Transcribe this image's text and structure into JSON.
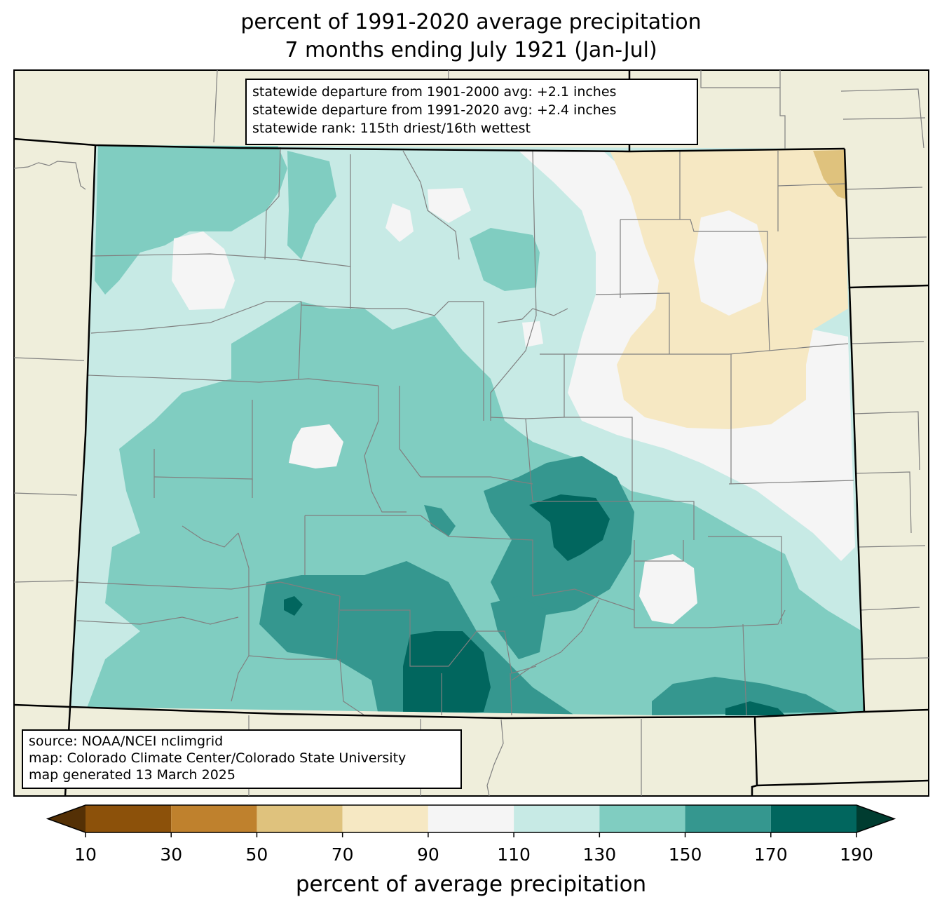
{
  "title": {
    "line1": "percent of 1991-2020 average precipitation",
    "line2": "7 months ending July 1921 (Jan-Jul)"
  },
  "stats": {
    "line1": "statewide departure from 1901-2000 avg: +2.1 inches",
    "line2": "statewide departure from 1991-2020 avg: +2.4 inches",
    "line3": "statewide rank: 115th driest/16th wettest"
  },
  "source": {
    "line1": "source: NOAA/NCEI nclimgrid",
    "line2": "map: Colorado Climate Center/Colorado State University",
    "line3": "map generated 13 March 2025"
  },
  "colorbar": {
    "label": "percent of average precipitation",
    "ticks": [
      "10",
      "30",
      "50",
      "70",
      "90",
      "110",
      "130",
      "150",
      "170",
      "190"
    ],
    "under_color": "#543005",
    "over_color": "#003c30",
    "bins": [
      {
        "range": "10-30",
        "color": "#8c510a"
      },
      {
        "range": "30-50",
        "color": "#bf812d"
      },
      {
        "range": "50-70",
        "color": "#dfc27d"
      },
      {
        "range": "70-90",
        "color": "#f6e8c3"
      },
      {
        "range": "90-110",
        "color": "#f5f5f5"
      },
      {
        "range": "110-130",
        "color": "#c7eae5"
      },
      {
        "range": "130-150",
        "color": "#80cdc1"
      },
      {
        "range": "150-170",
        "color": "#35978f"
      },
      {
        "range": "170-190",
        "color": "#01665e"
      }
    ]
  },
  "colors": {
    "land": "#efeedb",
    "county_lines": "#808080",
    "state_lines": "#000000"
  }
}
